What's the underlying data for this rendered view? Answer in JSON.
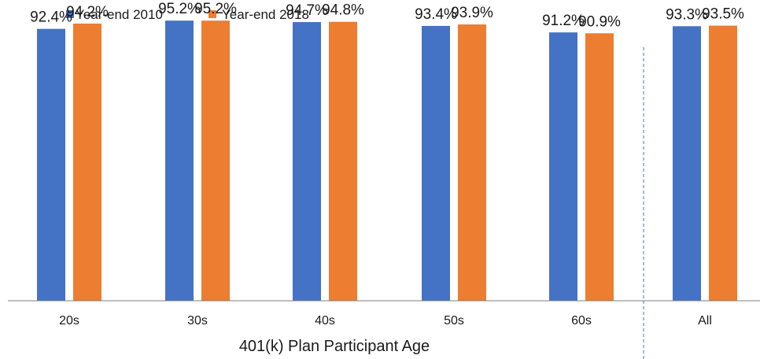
{
  "chart_data": {
    "type": "bar",
    "title": "",
    "xlabel": "401(k)  Plan Participant Age",
    "ylabel": "",
    "ylim": [
      0,
      100
    ],
    "grid": false,
    "legend_position": "top-left",
    "categories": [
      "20s",
      "30s",
      "40s",
      "50s",
      "60s",
      "All"
    ],
    "separator_before_category": "All",
    "series": [
      {
        "name": "Year-end 2010",
        "color": "#4472C4",
        "values": [
          92.4,
          95.2,
          94.7,
          93.4,
          91.2,
          93.3
        ],
        "labels": [
          "92.4%",
          "95.2%",
          "94.7%",
          "93.4%",
          "91.2%",
          "93.3%"
        ]
      },
      {
        "name": "Year-end 2018",
        "color": "#ED7D31",
        "values": [
          94.2,
          95.2,
          94.8,
          93.9,
          90.9,
          93.5
        ],
        "labels": [
          "94.2%",
          "95.2%",
          "94.8%",
          "93.9%",
          "90.9%",
          "93.5%"
        ]
      }
    ]
  }
}
